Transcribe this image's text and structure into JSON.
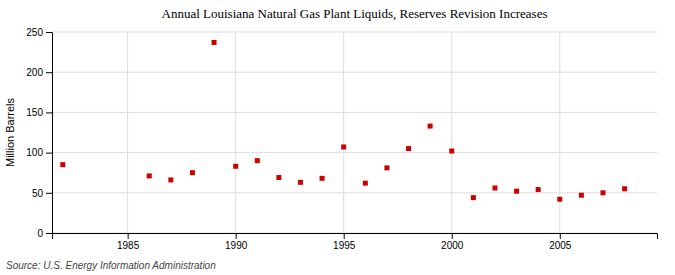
{
  "chart_data": {
    "type": "scatter",
    "title": "Annual Louisiana Natural Gas Plant Liquids, Reserves Revision Increases",
    "ylabel": "Million Barrels",
    "source": "Source: U.S. Energy Information Administration",
    "color": "#cc0000",
    "marker": "square",
    "grid": true,
    "xlim": [
      1981.5,
      2009.5
    ],
    "ylim": [
      0,
      250
    ],
    "xticks": [
      1985,
      1990,
      1995,
      2000,
      2005
    ],
    "yticks": [
      0,
      50,
      100,
      150,
      200,
      250
    ],
    "x": [
      1982,
      1986,
      1987,
      1988,
      1989,
      1990,
      1991,
      1992,
      1993,
      1994,
      1995,
      1996,
      1997,
      1998,
      1999,
      2000,
      2001,
      2002,
      2003,
      2004,
      2005,
      2006,
      2007,
      2008
    ],
    "values": [
      85,
      71,
      66,
      75,
      237,
      83,
      90,
      69,
      63,
      68,
      107,
      62,
      81,
      105,
      133,
      102,
      44,
      56,
      52,
      54,
      42,
      47,
      50,
      55
    ]
  }
}
